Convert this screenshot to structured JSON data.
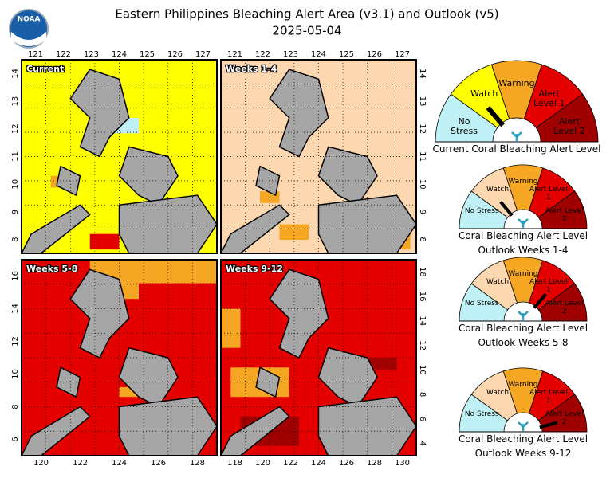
{
  "header": {
    "title": "Eastern Philippines Bleaching Alert Area (v3.1) and Outlook (v5)",
    "date": "2025-05-04",
    "logo": "NOAA"
  },
  "maps": [
    {
      "label": "Current",
      "top_ticks": [
        121,
        122,
        123,
        124,
        125,
        126,
        127
      ],
      "left_ticks": [
        14,
        13,
        12,
        11,
        10,
        9,
        8
      ]
    },
    {
      "label": "Weeks 1-4",
      "top_ticks": [
        121,
        122,
        123,
        124,
        125,
        126,
        127
      ],
      "right_ticks": [
        14,
        13,
        12,
        11,
        10,
        9,
        8
      ]
    },
    {
      "label": "Weeks 5-8",
      "left_ticks": [
        16,
        14,
        12,
        10,
        8,
        6
      ],
      "bottom_ticks": [
        120,
        122,
        124,
        126,
        128
      ]
    },
    {
      "label": "Weeks 9-12",
      "right_ticks": [
        18,
        16,
        14,
        12,
        10,
        8,
        6,
        4
      ],
      "bottom_ticks": [
        118,
        120,
        122,
        124,
        126,
        128,
        130
      ]
    }
  ],
  "gauge_levels": [
    "No Stress",
    "Watch",
    "Warning",
    "Alert Level 1",
    "Alert Level 2"
  ],
  "gauges": [
    {
      "caption": [
        "Current Coral Bleaching Alert Level"
      ]
    },
    {
      "caption": [
        "Coral Bleaching Alert Level",
        "Outlook Weeks 1-4"
      ]
    },
    {
      "caption": [
        "Coral Bleaching Alert Level",
        "Outlook Weeks 5-8"
      ]
    },
    {
      "caption": [
        "Coral Bleaching Alert Level",
        "Outlook Weeks 9-12"
      ]
    }
  ]
}
